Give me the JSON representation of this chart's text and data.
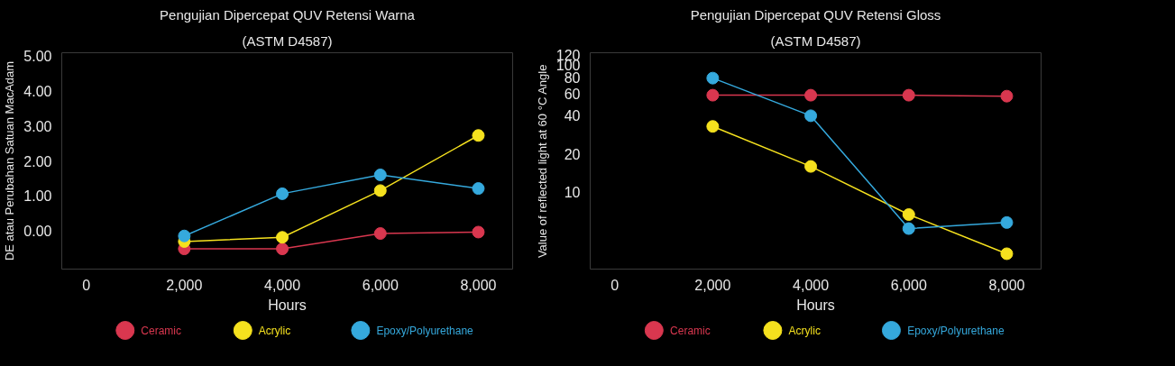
{
  "chart_data": [
    {
      "type": "line",
      "title": "Pengujian Dipercepat QUV Retensi Warna",
      "subtitle": "(ASTM D4587)",
      "xlabel": "Hours",
      "ylabel": "DE atau Perubahan Satuan MacAdam",
      "x": [
        2000,
        4000,
        6000,
        8000
      ],
      "xlim": [
        -500,
        8700
      ],
      "xticks": [
        0,
        {
          "value": 2000,
          "label": "2,000"
        },
        {
          "value": 4000,
          "label": "4,000"
        },
        {
          "value": 6000,
          "label": "6,000"
        },
        {
          "value": 8000,
          "label": "8,000"
        }
      ],
      "ylim": [
        -1.1,
        5.1
      ],
      "yticks": [
        {
          "value": 0,
          "label": "0.00"
        },
        {
          "value": 1,
          "label": "1.00"
        },
        {
          "value": 2,
          "label": "2.00"
        },
        {
          "value": 3,
          "label": "3.00"
        },
        {
          "value": 4,
          "label": "4.00"
        },
        {
          "value": 5,
          "label": "5.00"
        }
      ],
      "series": [
        {
          "name": "Ceramic",
          "color": "#d9374f",
          "values": [
            -0.52,
            -0.52,
            -0.08,
            -0.04
          ]
        },
        {
          "name": "Acrylic",
          "color": "#f5e11e",
          "values": [
            -0.31,
            -0.19,
            1.15,
            2.73
          ]
        },
        {
          "name": "Epoxy/Polyurethane",
          "color": "#35a9dd",
          "values": [
            -0.15,
            1.06,
            1.6,
            1.21
          ]
        }
      ],
      "marker": "circle",
      "grid": false,
      "legend": "bottom"
    },
    {
      "type": "line",
      "title": "Pengujian Dipercepat QUV Retensi Gloss",
      "subtitle": "(ASTM D4587)",
      "xlabel": "Hours",
      "ylabel": "Value of reflected light at 60 °C Angle",
      "x": [
        2000,
        4000,
        6000,
        8000
      ],
      "xlim": [
        -500,
        8700
      ],
      "xticks": [
        0,
        {
          "value": 2000,
          "label": "2,000"
        },
        {
          "value": 4000,
          "label": "4,000"
        },
        {
          "value": 6000,
          "label": "6,000"
        },
        {
          "value": 8000,
          "label": "8,000"
        }
      ],
      "ylim": [
        2.5,
        125
      ],
      "yticks": [
        10,
        20,
        40,
        60,
        80,
        100,
        120
      ],
      "log": "y",
      "series": [
        {
          "name": "Ceramic",
          "color": "#d9374f",
          "values": [
            58,
            58,
            58,
            57
          ]
        },
        {
          "name": "Acrylic",
          "color": "#f5e11e",
          "values": [
            33,
            16,
            6.7,
            3.3
          ]
        },
        {
          "name": "Epoxy/Polyurethane",
          "color": "#35a9dd",
          "values": [
            79,
            40,
            5.2,
            5.8
          ]
        }
      ],
      "marker": "circle",
      "grid": false,
      "legend": "bottom"
    }
  ]
}
